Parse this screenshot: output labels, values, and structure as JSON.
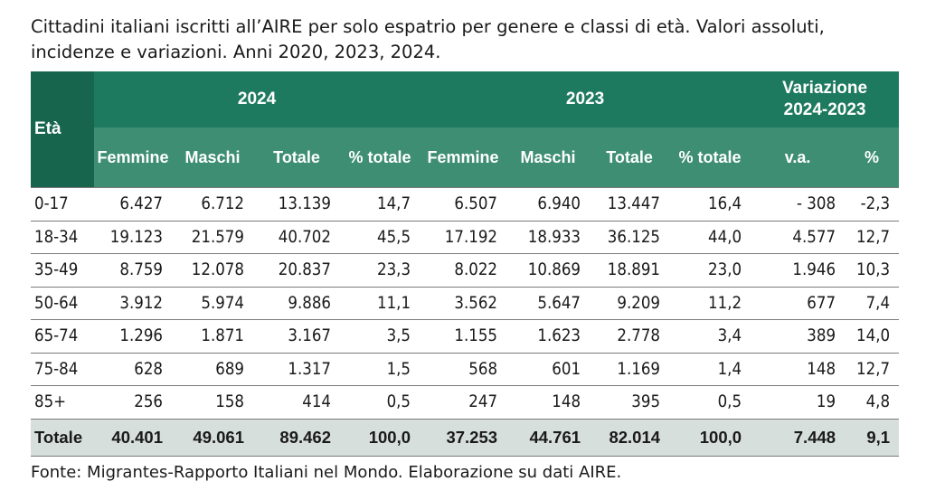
{
  "title": "Cittadini italiani iscritti all’AIRE per solo espatrio per genere e classi di età. Valori assoluti, incidenze e variazioni. Anni 2020, 2023, 2024.",
  "header": {
    "eta": "Età",
    "year_2024": "2024",
    "year_2023": "2023",
    "variation_line1": "Variazione",
    "variation_line2": "2024-2023",
    "columns": [
      "Femmine",
      "Maschi",
      "Totale",
      "% totale",
      "Femmine",
      "Maschi",
      "Totale",
      "% totale",
      "v.a.",
      "%"
    ]
  },
  "rows": [
    {
      "age": "0-17",
      "values": [
        "6.427",
        "6.712",
        "13.139",
        "14,7",
        "6.507",
        "6.940",
        "13.447",
        "16,4",
        "- 308",
        "-2,3"
      ]
    },
    {
      "age": "18-34",
      "values": [
        "19.123",
        "21.579",
        "40.702",
        "45,5",
        "17.192",
        "18.933",
        "36.125",
        "44,0",
        "4.577",
        "12,7"
      ]
    },
    {
      "age": "35-49",
      "values": [
        "8.759",
        "12.078",
        "20.837",
        "23,3",
        "8.022",
        "10.869",
        "18.891",
        "23,0",
        "1.946",
        "10,3"
      ]
    },
    {
      "age": "50-64",
      "values": [
        "3.912",
        "5.974",
        "9.886",
        "11,1",
        "3.562",
        "5.647",
        "9.209",
        "11,2",
        "677",
        "7,4"
      ]
    },
    {
      "age": "65-74",
      "values": [
        "1.296",
        "1.871",
        "3.167",
        "3,5",
        "1.155",
        "1.623",
        "2.778",
        "3,4",
        "389",
        "14,0"
      ]
    },
    {
      "age": "75-84",
      "values": [
        "628",
        "689",
        "1.317",
        "1,5",
        "568",
        "601",
        "1.169",
        "1,4",
        "148",
        "12,7"
      ]
    },
    {
      "age": "85+",
      "values": [
        "256",
        "158",
        "414",
        "0,5",
        "247",
        "148",
        "395",
        "0,5",
        "19",
        "4,8"
      ]
    }
  ],
  "total": {
    "label": "Totale",
    "values": [
      "40.401",
      "49.061",
      "89.462",
      "100,0",
      "37.253",
      "44.761",
      "82.014",
      "100,0",
      "7.448",
      "9,1"
    ]
  },
  "source": "Fonte: Migrantes-Rapporto Italiani nel Mondo. Elaborazione su dati AIRE.",
  "colors": {
    "header_dark": "#1e7a5e",
    "header_light": "#3d8e73",
    "total_row": "#d7dfdc"
  }
}
